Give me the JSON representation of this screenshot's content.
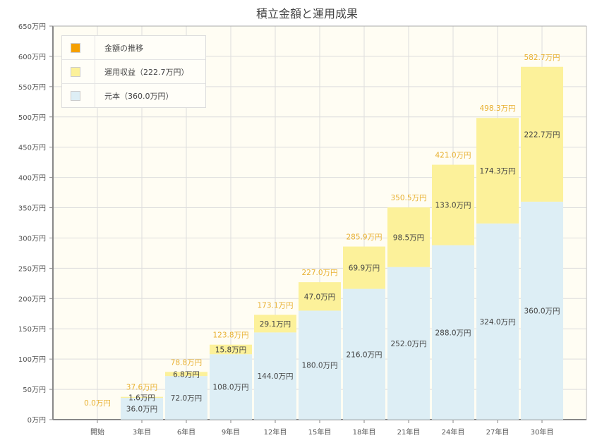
{
  "chart_data": {
    "type": "bar",
    "stacked": true,
    "title": "積立金額と運用成果",
    "categories": [
      "開始",
      "3年目",
      "6年目",
      "9年目",
      "12年目",
      "15年目",
      "18年目",
      "21年目",
      "24年目",
      "27年目",
      "30年目"
    ],
    "series": [
      {
        "name": "元本（360.0万円）",
        "color": "#ddeef5",
        "values": [
          0,
          36.0,
          72.0,
          108.0,
          144.0,
          180.0,
          216.0,
          252.0,
          288.0,
          324.0,
          360.0
        ],
        "labels": [
          "",
          "36.0万円",
          "72.0万円",
          "108.0万円",
          "144.0万円",
          "180.0万円",
          "216.0万円",
          "252.0万円",
          "288.0万円",
          "324.0万円",
          "360.0万円"
        ]
      },
      {
        "name": "運用収益（222.7万円）",
        "color": "#fcf19a",
        "values": [
          0,
          1.6,
          6.8,
          15.8,
          29.1,
          47.0,
          69.9,
          98.5,
          133.0,
          174.3,
          222.7
        ],
        "labels": [
          "",
          "1.6万円",
          "6.8万円",
          "15.8万円",
          "29.1万円",
          "47.0万円",
          "69.9万円",
          "98.5万円",
          "133.0万円",
          "174.3万円",
          "222.7万円"
        ]
      }
    ],
    "totals": {
      "name": "金額の推移",
      "color": "#f5a000",
      "values": [
        0.0,
        37.6,
        78.8,
        123.8,
        173.1,
        227.0,
        285.9,
        350.5,
        421.0,
        498.3,
        582.7
      ],
      "labels": [
        "0.0万円",
        "37.6万円",
        "78.8万円",
        "123.8万円",
        "173.1万円",
        "227.0万円",
        "285.9万円",
        "350.5万円",
        "421.0万円",
        "498.3万円",
        "582.7万円"
      ]
    },
    "yticks": [
      "0万円",
      "50万円",
      "100万円",
      "150万円",
      "200万円",
      "250万円",
      "300万円",
      "350万円",
      "400万円",
      "450万円",
      "500万円",
      "550万円",
      "600万円",
      "650万円"
    ],
    "ylim": [
      0,
      650
    ],
    "grid": true,
    "legend_position": "top-left"
  }
}
